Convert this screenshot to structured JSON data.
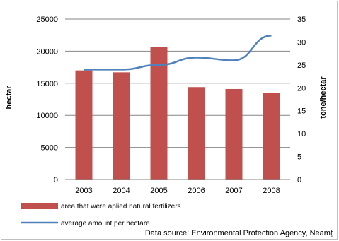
{
  "chart_data": {
    "type": "bar",
    "categories": [
      "2003",
      "2004",
      "2005",
      "2006",
      "2007",
      "2008"
    ],
    "series": [
      {
        "name": "area that were aplied natural fertilizers",
        "chart": "bar",
        "axis": "left",
        "color": "#c0504d",
        "values": [
          17000,
          16700,
          20700,
          14400,
          14100,
          13500
        ]
      },
      {
        "name": "average amount per hectare",
        "chart": "line",
        "axis": "right",
        "color": "#4f81bd",
        "values": [
          24,
          24,
          25,
          26.6,
          26,
          31.4
        ]
      }
    ],
    "ylabel": "hectar",
    "y2label": "tone/hectar",
    "ylim": [
      0,
      25000
    ],
    "y2lim": [
      0,
      35
    ],
    "yticks": [
      "0",
      "5000",
      "10000",
      "15000",
      "20000",
      "25000"
    ],
    "y2ticks": [
      "0",
      "5",
      "10",
      "15",
      "20",
      "25",
      "30",
      "35"
    ],
    "grid": "horizontal",
    "legend_position": "bottom-left"
  },
  "source_note": "Data source: Environmental Protection Agency, Neamț"
}
